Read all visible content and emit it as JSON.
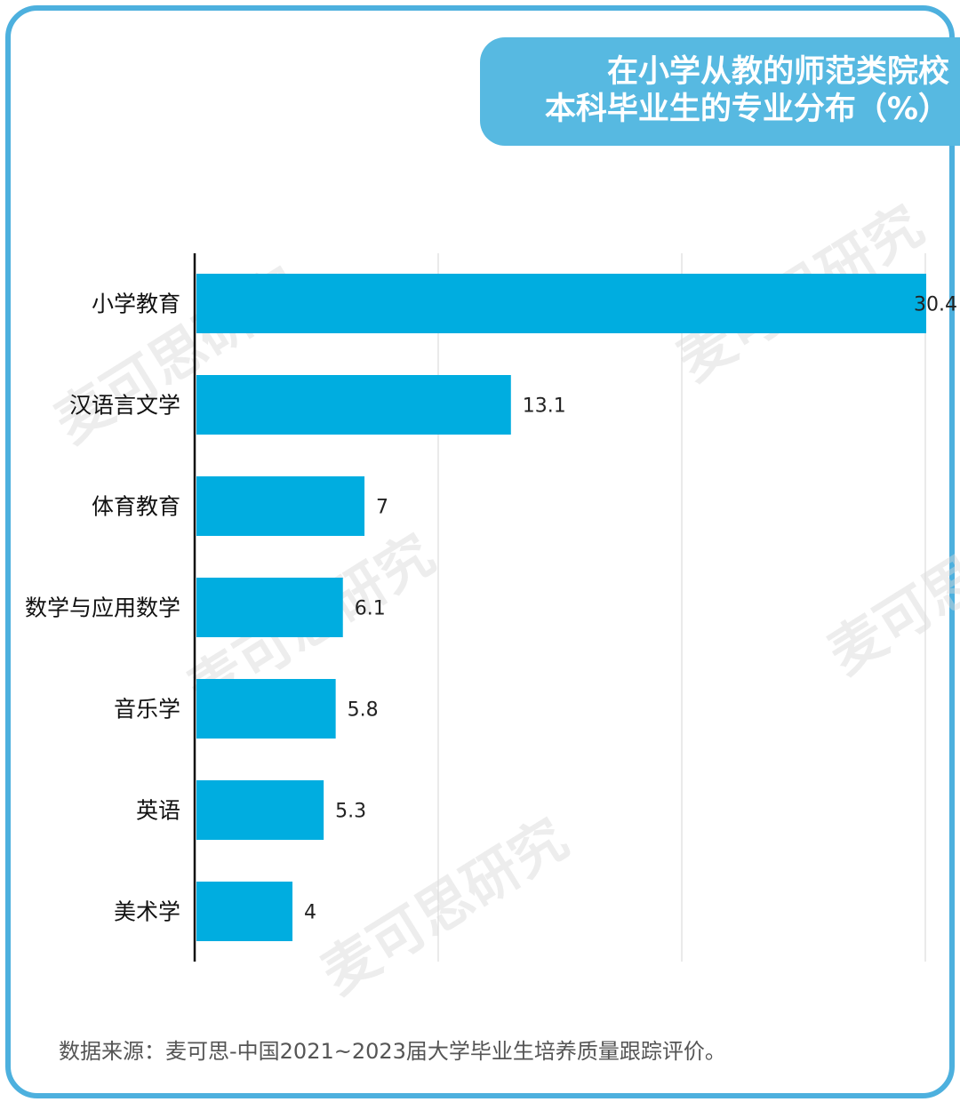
{
  "title": {
    "line1": "在小学从教的师范类院校",
    "line2": "本科毕业生的专业分布（%）"
  },
  "source": "数据来源：麦可思-中国2021~2023届大学毕业生培养质量跟踪评价。",
  "watermark": "麦可思研究",
  "colors": {
    "frame": "#4db0de",
    "title_bg": "#57b9e1",
    "bar": "#00ade0",
    "grid": "#dddddd",
    "axis": "#111111"
  },
  "chart_data": {
    "type": "bar",
    "orientation": "horizontal",
    "title": "在小学从教的师范类院校本科毕业生的专业分布（%）",
    "categories": [
      "小学教育",
      "汉语言文学",
      "体育教育",
      "数学与应用数学",
      "音乐学",
      "英语",
      "美术学"
    ],
    "values": [
      30.4,
      13.1,
      7,
      6.1,
      5.8,
      5.3,
      4
    ],
    "value_labels": [
      "30.4",
      "13.1",
      "7",
      "6.1",
      "5.8",
      "5.3",
      "4"
    ],
    "grid": true,
    "legend": "none"
  }
}
